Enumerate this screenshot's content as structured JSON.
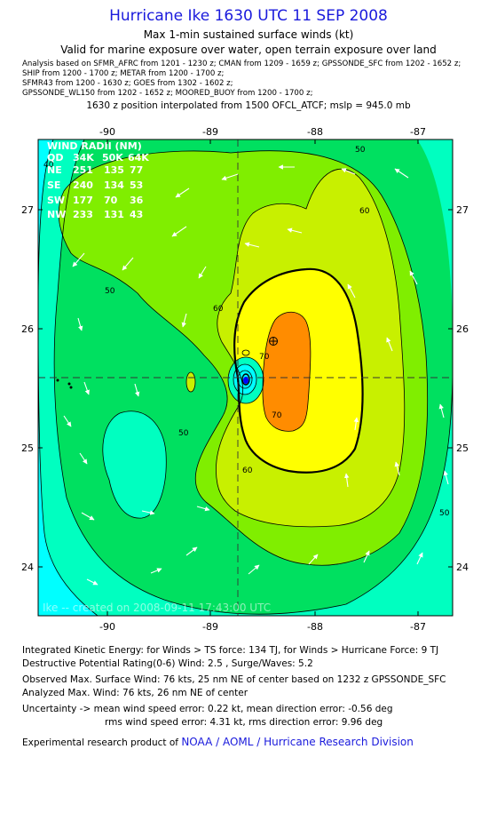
{
  "title": "Hurricane Ike 1630 UTC 11 SEP 2008",
  "subtitle1": "Max 1-min sustained surface winds (kt)",
  "subtitle2": "Valid for marine exposure over water, open terrain exposure over land",
  "sources": [
    "Analysis based on  SFMR_AFRC from 1201 - 1230 z;  CMAN from 1209 - 1659 z;  GPSSONDE_SFC from 1202 - 1652 z;",
    "SHIP from 1200 - 1700 z;  METAR from 1200 - 1700 z;",
    "SFMR43 from 1200 - 1630 z;  GOES from 1302 - 1602 z;",
    "GPSSONDE_WL150 from 1202 - 1652 z;  MOORED_BUOY from 1200 - 1700 z;"
  ],
  "position_line": "1630 z position interpolated from 1500 OFCL_ATCF; mslp = 945.0 mb",
  "map": {
    "lon_ticks": [
      "-90",
      "-89",
      "-88",
      "-87"
    ],
    "lat_ticks": [
      "27",
      "26",
      "25",
      "24"
    ],
    "contour_labels": [
      "40",
      "50",
      "50",
      "50",
      "50",
      "60",
      "60",
      "60",
      "70",
      "70"
    ],
    "watermark": "Ike -- created on 2008-09-11 17:43:00 UTC",
    "colors": {
      "cyan_lt30": "#00ffff",
      "aqua_30_40": "#00ffc0",
      "green_40_50": "#00e060",
      "lime_50_60": "#80ee00",
      "chartreuse_60_64": "#c8f000",
      "yellow_64_70": "#ffff00",
      "orange_70_80": "#ff8c00",
      "center_marker": "#0000ff"
    },
    "wind_radii": {
      "header": "WIND RADII (NM)",
      "columns": [
        "QD",
        "34K",
        "50K",
        "64K"
      ],
      "rows": [
        [
          "NE",
          "251",
          "135",
          "77"
        ],
        [
          "SE",
          "240",
          "134",
          "53"
        ],
        [
          "SW",
          "177",
          "70",
          "36"
        ],
        [
          "NW",
          "233",
          "131",
          "43"
        ]
      ]
    }
  },
  "footer": {
    "ike": "Integrated Kinetic Energy:  for Winds > TS force: 134 TJ,  for Winds > Hurricane Force: 9 TJ",
    "dpr": "Destructive Potential Rating(0-6)   Wind: 2.5 , Surge/Waves: 5.2",
    "observed": "Observed Max. Surface Wind: 76 kts, 25 nm NE of center based on 1232 z GPSSONDE_SFC",
    "analyzed": "Analyzed Max. Wind: 76 kts, 26 nm NE of center",
    "uncertainty1": "Uncertainty -> mean wind speed error: 0.22 kt,   mean direction error:  -0.56 deg",
    "uncertainty2": "rms wind speed error: 4.31 kt,   rms direction error: 9.96 deg",
    "credit_prefix": "Experimental research product of ",
    "credit_link": "NOAA / AOML / Hurricane Research Division"
  }
}
